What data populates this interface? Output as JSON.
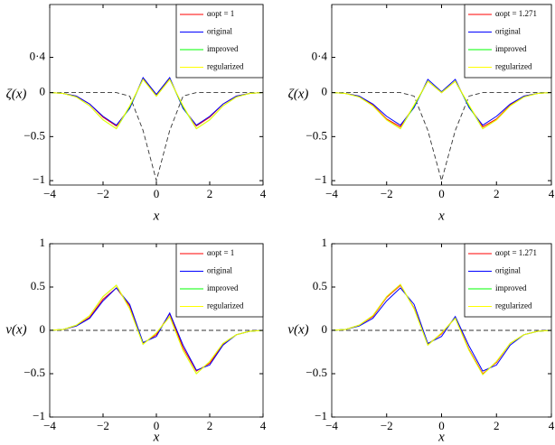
{
  "chart_data": [
    {
      "type": "line",
      "xlabel": "x",
      "ylabel": "ζ(x)",
      "x": [
        -4,
        -3.5,
        -3,
        -2.5,
        -2,
        -1.5,
        -1,
        -0.5,
        0,
        0.5,
        1,
        1.5,
        2,
        2.5,
        3,
        3.5,
        4
      ],
      "xlim": [
        -4,
        4
      ],
      "ylim": [
        -1.05,
        1
      ],
      "xticks": [
        {
          "value": -4,
          "label": "−4"
        },
        {
          "value": -2,
          "label": "−2"
        },
        0,
        2,
        4
      ],
      "yticks": [
        {
          "value": -1,
          "label": "−1"
        },
        {
          "value": -0.5,
          "label": "−0.5"
        },
        0,
        {
          "value": 0.4,
          "label": "0·4"
        }
      ],
      "legend": "upper right",
      "series": [
        {
          "name": "αopt = 1",
          "color": "#ff0000",
          "values": [
            0,
            -0.01,
            -0.04,
            -0.13,
            -0.28,
            -0.38,
            -0.17,
            0.16,
            -0.03,
            0.16,
            -0.17,
            -0.38,
            -0.28,
            -0.13,
            -0.04,
            -0.01,
            0
          ]
        },
        {
          "name": "original",
          "color": "#0000ff",
          "values": [
            0,
            -0.01,
            -0.04,
            -0.13,
            -0.27,
            -0.37,
            -0.18,
            0.17,
            -0.02,
            0.17,
            -0.18,
            -0.37,
            -0.27,
            -0.13,
            -0.04,
            -0.01,
            0
          ]
        },
        {
          "name": "improved",
          "color": "#00ff00",
          "values": [
            0,
            -0.01,
            -0.05,
            -0.15,
            -0.31,
            -0.41,
            -0.16,
            0.15,
            -0.04,
            0.15,
            -0.16,
            -0.41,
            -0.31,
            -0.15,
            -0.05,
            -0.01,
            0
          ]
        },
        {
          "name": "regularized",
          "color": "#ffff00",
          "values": [
            0,
            -0.01,
            -0.05,
            -0.15,
            -0.31,
            -0.41,
            -0.15,
            0.15,
            -0.04,
            0.15,
            -0.15,
            -0.41,
            -0.31,
            -0.15,
            -0.05,
            -0.01,
            0
          ]
        }
      ],
      "dashed_values": [
        0,
        0,
        0,
        0,
        0,
        0,
        -0.04,
        -0.43,
        -1,
        -0.43,
        -0.04,
        0,
        0,
        0,
        0,
        0,
        0
      ]
    },
    {
      "type": "line",
      "xlabel": "x",
      "ylabel": "ζ(x)",
      "x": [
        -4,
        -3.5,
        -3,
        -2.5,
        -2,
        -1.5,
        -1,
        -0.5,
        0,
        0.5,
        1,
        1.5,
        2,
        2.5,
        3,
        3.5,
        4
      ],
      "xlim": [
        -4,
        4
      ],
      "ylim": [
        -1.05,
        1
      ],
      "xticks": [
        {
          "value": -4,
          "label": "−4"
        },
        {
          "value": -2,
          "label": "−2"
        },
        0,
        2,
        4
      ],
      "yticks": [
        {
          "value": -1,
          "label": "−1"
        },
        {
          "value": -0.5,
          "label": "−0.5"
        },
        0,
        {
          "value": 0.4,
          "label": "0·4"
        }
      ],
      "legend": "upper right",
      "series": [
        {
          "name": "αopt = 1.271",
          "color": "#ff0000",
          "values": [
            0,
            -0.01,
            -0.04,
            -0.14,
            -0.3,
            -0.39,
            -0.15,
            0.13,
            0,
            0.13,
            -0.15,
            -0.39,
            -0.3,
            -0.14,
            -0.04,
            -0.01,
            0
          ]
        },
        {
          "name": "original",
          "color": "#0000ff",
          "values": [
            0,
            -0.01,
            -0.04,
            -0.13,
            -0.27,
            -0.37,
            -0.17,
            0.15,
            0.01,
            0.15,
            -0.17,
            -0.37,
            -0.27,
            -0.13,
            -0.04,
            -0.01,
            0
          ]
        },
        {
          "name": "improved",
          "color": "#00ff00",
          "values": [
            0,
            -0.01,
            -0.05,
            -0.15,
            -0.31,
            -0.41,
            -0.15,
            0.13,
            0,
            0.13,
            -0.15,
            -0.41,
            -0.31,
            -0.15,
            -0.05,
            -0.01,
            0
          ]
        },
        {
          "name": "regularized",
          "color": "#ffff00",
          "values": [
            0,
            -0.01,
            -0.05,
            -0.15,
            -0.31,
            -0.41,
            -0.14,
            0.13,
            0,
            0.13,
            -0.14,
            -0.41,
            -0.31,
            -0.15,
            -0.05,
            -0.01,
            0
          ]
        }
      ],
      "dashed_values": [
        0,
        0,
        0,
        0,
        0,
        0,
        -0.04,
        -0.43,
        -1,
        -0.43,
        -0.04,
        0,
        0,
        0,
        0,
        0,
        0
      ]
    },
    {
      "type": "line",
      "xlabel": "x",
      "ylabel": "v(x)",
      "x": [
        -4,
        -3.5,
        -3,
        -2.5,
        -2,
        -1.5,
        -1,
        -0.5,
        0,
        0.5,
        1,
        1.5,
        2,
        2.5,
        3,
        3.5,
        4
      ],
      "xlim": [
        -4,
        4
      ],
      "ylim": [
        -1,
        1
      ],
      "xticks": [
        {
          "value": -4,
          "label": "−4"
        },
        {
          "value": -2,
          "label": "−2"
        },
        0,
        2,
        4
      ],
      "yticks": [
        {
          "value": -1,
          "label": "−1"
        },
        {
          "value": -0.5,
          "label": "−0.5"
        },
        0,
        0.5,
        1
      ],
      "legend": "upper right",
      "series": [
        {
          "name": "αopt = 1",
          "color": "#ff0000",
          "values": [
            0,
            0.01,
            0.05,
            0.15,
            0.36,
            0.49,
            0.28,
            -0.15,
            -0.05,
            0.19,
            -0.2,
            -0.47,
            -0.38,
            -0.16,
            -0.05,
            -0.01,
            0
          ]
        },
        {
          "name": "original",
          "color": "#0000ff",
          "values": [
            0,
            0.01,
            0.05,
            0.14,
            0.34,
            0.49,
            0.3,
            -0.14,
            -0.07,
            0.2,
            -0.17,
            -0.46,
            -0.4,
            -0.17,
            -0.05,
            -0.01,
            0
          ]
        },
        {
          "name": "improved",
          "color": "#00ff00",
          "values": [
            0,
            0.01,
            0.06,
            0.17,
            0.39,
            0.52,
            0.25,
            -0.16,
            -0.03,
            0.16,
            -0.23,
            -0.5,
            -0.36,
            -0.15,
            -0.05,
            -0.01,
            0
          ]
        },
        {
          "name": "regularized",
          "color": "#ffff00",
          "values": [
            0,
            0.01,
            0.06,
            0.17,
            0.39,
            0.52,
            0.25,
            -0.16,
            -0.03,
            0.16,
            -0.23,
            -0.5,
            -0.36,
            -0.15,
            -0.05,
            -0.01,
            0
          ]
        }
      ],
      "dashed_values": [
        0,
        0,
        0,
        0,
        0,
        0,
        0,
        0,
        0,
        0,
        0,
        0,
        0,
        0,
        0,
        0,
        0
      ]
    },
    {
      "type": "line",
      "xlabel": "x",
      "ylabel": "v(x)",
      "x": [
        -4,
        -3.5,
        -3,
        -2.5,
        -2,
        -1.5,
        -1,
        -0.5,
        0,
        0.5,
        1,
        1.5,
        2,
        2.5,
        3,
        3.5,
        4
      ],
      "xlim": [
        -4,
        4
      ],
      "ylim": [
        -1,
        1
      ],
      "xticks": [
        {
          "value": -4,
          "label": "−4"
        },
        {
          "value": -2,
          "label": "−2"
        },
        0,
        2,
        4
      ],
      "yticks": [
        {
          "value": -1,
          "label": "−1"
        },
        {
          "value": -0.5,
          "label": "−0.5"
        },
        0,
        0.5,
        1
      ],
      "legend": "upper right",
      "series": [
        {
          "name": "αopt = 1.271",
          "color": "#ff0000",
          "values": [
            0,
            0.01,
            0.06,
            0.16,
            0.38,
            0.52,
            0.26,
            -0.16,
            -0.04,
            0.15,
            -0.22,
            -0.5,
            -0.37,
            -0.15,
            -0.05,
            -0.01,
            0
          ]
        },
        {
          "name": "original",
          "color": "#0000ff",
          "values": [
            0,
            0.01,
            0.05,
            0.14,
            0.34,
            0.49,
            0.3,
            -0.15,
            -0.07,
            0.16,
            -0.18,
            -0.47,
            -0.4,
            -0.17,
            -0.05,
            -0.01,
            0
          ]
        },
        {
          "name": "improved",
          "color": "#00ff00",
          "values": [
            0,
            0.01,
            0.06,
            0.17,
            0.39,
            0.53,
            0.25,
            -0.17,
            -0.03,
            0.14,
            -0.23,
            -0.51,
            -0.36,
            -0.15,
            -0.05,
            -0.01,
            0
          ]
        },
        {
          "name": "regularized",
          "color": "#ffff00",
          "values": [
            0,
            0.01,
            0.06,
            0.17,
            0.39,
            0.53,
            0.25,
            -0.17,
            -0.03,
            0.14,
            -0.23,
            -0.51,
            -0.36,
            -0.15,
            -0.05,
            -0.01,
            0
          ]
        }
      ],
      "dashed_values": [
        0,
        0,
        0,
        0,
        0,
        0,
        0,
        0,
        0,
        0,
        0,
        0,
        0,
        0,
        0,
        0,
        0
      ]
    }
  ]
}
